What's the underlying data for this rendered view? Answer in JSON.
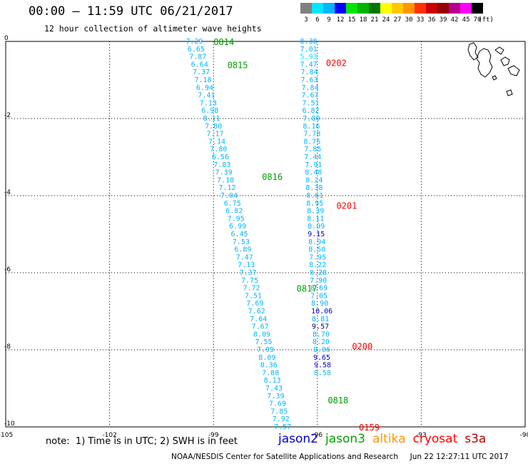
{
  "title": "00:00 – 11:59 UTC 06/21/2017",
  "subtitle": "12 hour collection of altimeter wave heights",
  "color_scale": {
    "unit": "(ft)",
    "values": [
      "3",
      "6",
      "9",
      "12",
      "15",
      "18",
      "21",
      "24",
      "27",
      "30",
      "33",
      "36",
      "39",
      "42",
      "45",
      "70"
    ],
    "colors": [
      "#808080",
      "#00e6ff",
      "#00b4ff",
      "#0000ff",
      "#00e600",
      "#00b400",
      "#007800",
      "#ffff00",
      "#ffc800",
      "#ff9600",
      "#ff3200",
      "#c80000",
      "#960000",
      "#b4008c",
      "#ff00ff",
      "#000000"
    ]
  },
  "axes": {
    "x_ticks": [
      "-105",
      "-102",
      "-99",
      "-96",
      "-93",
      "-90"
    ],
    "y_ticks": [
      "0",
      "-2",
      "-4",
      "-6",
      "-8",
      "-10"
    ]
  },
  "tracks": [
    {
      "satellite": "jason3",
      "color": "#00a000",
      "time_labels": [
        {
          "text": "0814",
          "lon": -99.0,
          "lat": 0.0
        },
        {
          "text": "0815",
          "lon": -98.6,
          "lat": -0.6
        },
        {
          "text": "0816",
          "lon": -97.6,
          "lat": -3.5
        },
        {
          "text": "0817",
          "lon": -96.6,
          "lat": -6.4
        },
        {
          "text": "0818",
          "lon": -95.7,
          "lat": -9.3
        }
      ]
    },
    {
      "satellite": "cryosat",
      "color": "#ff0000",
      "time_labels": [
        {
          "text": "0202",
          "lon": -95.75,
          "lat": -0.55
        },
        {
          "text": "0201",
          "lon": -95.45,
          "lat": -4.25
        },
        {
          "text": "0200",
          "lon": -95.0,
          "lat": -7.9
        },
        {
          "text": "0159",
          "lon": -94.8,
          "lat": -10.0
        }
      ]
    }
  ],
  "swh": [
    {
      "v": "7.29",
      "lon": -99.8,
      "lat": 0.0,
      "c": "#00b4ff"
    },
    {
      "v": "6.65",
      "lon": -99.75,
      "lat": -0.2,
      "c": "#00b4ff"
    },
    {
      "v": "7.87",
      "lon": -99.7,
      "lat": -0.4,
      "c": "#00b4ff"
    },
    {
      "v": "6.64",
      "lon": -99.65,
      "lat": -0.6,
      "c": "#00b4ff"
    },
    {
      "v": "7.37",
      "lon": -99.6,
      "lat": -0.8,
      "c": "#00b4ff"
    },
    {
      "v": "7.18",
      "lon": -99.55,
      "lat": -1.0,
      "c": "#00b4ff"
    },
    {
      "v": "6.94",
      "lon": -99.5,
      "lat": -1.2,
      "c": "#00b4ff"
    },
    {
      "v": "7.41",
      "lon": -99.45,
      "lat": -1.4,
      "c": "#00b4ff"
    },
    {
      "v": "7.13",
      "lon": -99.4,
      "lat": -1.6,
      "c": "#00b4ff"
    },
    {
      "v": "6.98",
      "lon": -99.35,
      "lat": -1.8,
      "c": "#00b4ff"
    },
    {
      "v": "8.11",
      "lon": -99.3,
      "lat": -2.0,
      "c": "#00b4ff"
    },
    {
      "v": "7.80",
      "lon": -99.25,
      "lat": -2.2,
      "c": "#00b4ff"
    },
    {
      "v": "7.17",
      "lon": -99.2,
      "lat": -2.4,
      "c": "#00b4ff"
    },
    {
      "v": "7.14",
      "lon": -99.15,
      "lat": -2.6,
      "c": "#00b4ff"
    },
    {
      "v": "7.80",
      "lon": -99.1,
      "lat": -2.8,
      "c": "#00b4ff"
    },
    {
      "v": "6.56",
      "lon": -99.05,
      "lat": -3.0,
      "c": "#00b4ff"
    },
    {
      "v": "7.83",
      "lon": -99.0,
      "lat": -3.2,
      "c": "#00b4ff"
    },
    {
      "v": "7.39",
      "lon": -98.95,
      "lat": -3.4,
      "c": "#00b4ff"
    },
    {
      "v": "7.18",
      "lon": -98.9,
      "lat": -3.6,
      "c": "#00b4ff"
    },
    {
      "v": "7.12",
      "lon": -98.85,
      "lat": -3.8,
      "c": "#00b4ff"
    },
    {
      "v": "7.04",
      "lon": -98.8,
      "lat": -4.0,
      "c": "#00b4ff"
    },
    {
      "v": "6.75",
      "lon": -98.7,
      "lat": -4.2,
      "c": "#00b4ff"
    },
    {
      "v": "6.82",
      "lon": -98.65,
      "lat": -4.4,
      "c": "#00b4ff"
    },
    {
      "v": "7.95",
      "lon": -98.6,
      "lat": -4.6,
      "c": "#00b4ff"
    },
    {
      "v": "6.99",
      "lon": -98.55,
      "lat": -4.8,
      "c": "#00b4ff"
    },
    {
      "v": "6.45",
      "lon": -98.5,
      "lat": -5.0,
      "c": "#00b4ff"
    },
    {
      "v": "7.53",
      "lon": -98.45,
      "lat": -5.2,
      "c": "#00b4ff"
    },
    {
      "v": "6.89",
      "lon": -98.4,
      "lat": -5.4,
      "c": "#00b4ff"
    },
    {
      "v": "7.47",
      "lon": -98.35,
      "lat": -5.6,
      "c": "#00b4ff"
    },
    {
      "v": "7.13",
      "lon": -98.3,
      "lat": -5.8,
      "c": "#00b4ff"
    },
    {
      "v": "7.37",
      "lon": -98.25,
      "lat": -6.0,
      "c": "#00b4ff"
    },
    {
      "v": "7.75",
      "lon": -98.2,
      "lat": -6.2,
      "c": "#00b4ff"
    },
    {
      "v": "7.72",
      "lon": -98.15,
      "lat": -6.4,
      "c": "#00b4ff"
    },
    {
      "v": "7.51",
      "lon": -98.1,
      "lat": -6.6,
      "c": "#00b4ff"
    },
    {
      "v": "7.69",
      "lon": -98.05,
      "lat": -6.8,
      "c": "#00b4ff"
    },
    {
      "v": "7.62",
      "lon": -98.0,
      "lat": -7.0,
      "c": "#00b4ff"
    },
    {
      "v": "7.64",
      "lon": -97.95,
      "lat": -7.2,
      "c": "#00b4ff"
    },
    {
      "v": "7.67",
      "lon": -97.9,
      "lat": -7.4,
      "c": "#00b4ff"
    },
    {
      "v": "8.09",
      "lon": -97.85,
      "lat": -7.6,
      "c": "#00b4ff"
    },
    {
      "v": "7.55",
      "lon": -97.8,
      "lat": -7.8,
      "c": "#00b4ff"
    },
    {
      "v": "7.99",
      "lon": -97.75,
      "lat": -8.0,
      "c": "#00b4ff"
    },
    {
      "v": "8.09",
      "lon": -97.7,
      "lat": -8.2,
      "c": "#00b4ff"
    },
    {
      "v": "8.36",
      "lon": -97.65,
      "lat": -8.4,
      "c": "#00b4ff"
    },
    {
      "v": "7.88",
      "lon": -97.6,
      "lat": -8.6,
      "c": "#00b4ff"
    },
    {
      "v": "8.13",
      "lon": -97.55,
      "lat": -8.8,
      "c": "#00b4ff"
    },
    {
      "v": "7.43",
      "lon": -97.5,
      "lat": -9.0,
      "c": "#00b4ff"
    },
    {
      "v": "7.39",
      "lon": -97.45,
      "lat": -9.2,
      "c": "#00b4ff"
    },
    {
      "v": "7.69",
      "lon": -97.4,
      "lat": -9.4,
      "c": "#00b4ff"
    },
    {
      "v": "7.85",
      "lon": -97.35,
      "lat": -9.6,
      "c": "#00b4ff"
    },
    {
      "v": "7.92",
      "lon": -97.3,
      "lat": -9.8,
      "c": "#00b4ff"
    },
    {
      "v": "7.57",
      "lon": -97.25,
      "lat": -10.0,
      "c": "#00b4ff"
    },
    {
      "v": "8.38",
      "lon": -96.5,
      "lat": 0.0,
      "c": "#00b4ff"
    },
    {
      "v": "7.01",
      "lon": -96.5,
      "lat": -0.2,
      "c": "#00b4ff"
    },
    {
      "v": "5.93",
      "lon": -96.5,
      "lat": -0.4,
      "c": "#00e6ff"
    },
    {
      "v": "7.47",
      "lon": -96.5,
      "lat": -0.6,
      "c": "#00b4ff"
    },
    {
      "v": "7.84",
      "lon": -96.48,
      "lat": -0.8,
      "c": "#00b4ff"
    },
    {
      "v": "7.63",
      "lon": -96.48,
      "lat": -1.0,
      "c": "#00b4ff"
    },
    {
      "v": "7.84",
      "lon": -96.46,
      "lat": -1.2,
      "c": "#00b4ff"
    },
    {
      "v": "7.67",
      "lon": -96.46,
      "lat": -1.4,
      "c": "#00b4ff"
    },
    {
      "v": "7.51",
      "lon": -96.44,
      "lat": -1.6,
      "c": "#00b4ff"
    },
    {
      "v": "6.82",
      "lon": -96.44,
      "lat": -1.8,
      "c": "#00b4ff"
    },
    {
      "v": "7.80",
      "lon": -96.42,
      "lat": -2.0,
      "c": "#00b4ff"
    },
    {
      "v": "8.16",
      "lon": -96.42,
      "lat": -2.2,
      "c": "#00b4ff"
    },
    {
      "v": "7.78",
      "lon": -96.4,
      "lat": -2.4,
      "c": "#00b4ff"
    },
    {
      "v": "8.75",
      "lon": -96.4,
      "lat": -2.6,
      "c": "#00b4ff"
    },
    {
      "v": "7.85",
      "lon": -96.38,
      "lat": -2.8,
      "c": "#00b4ff"
    },
    {
      "v": "7.44",
      "lon": -96.38,
      "lat": -3.0,
      "c": "#00b4ff"
    },
    {
      "v": "7.91",
      "lon": -96.36,
      "lat": -3.2,
      "c": "#00b4ff"
    },
    {
      "v": "8.48",
      "lon": -96.36,
      "lat": -3.4,
      "c": "#00b4ff"
    },
    {
      "v": "8.24",
      "lon": -96.34,
      "lat": -3.6,
      "c": "#00b4ff"
    },
    {
      "v": "8.38",
      "lon": -96.34,
      "lat": -3.8,
      "c": "#00b4ff"
    },
    {
      "v": "8.61",
      "lon": -96.32,
      "lat": -4.0,
      "c": "#00b4ff"
    },
    {
      "v": "8.95",
      "lon": -96.32,
      "lat": -4.2,
      "c": "#00b4ff"
    },
    {
      "v": "8.39",
      "lon": -96.3,
      "lat": -4.4,
      "c": "#00b4ff"
    },
    {
      "v": "8.11",
      "lon": -96.3,
      "lat": -4.6,
      "c": "#00b4ff"
    },
    {
      "v": "8.99",
      "lon": -96.28,
      "lat": -4.8,
      "c": "#00b4ff"
    },
    {
      "v": "9.15",
      "lon": -96.28,
      "lat": -5.0,
      "c": "#0000cc"
    },
    {
      "v": "8.94",
      "lon": -96.26,
      "lat": -5.2,
      "c": "#00b4ff"
    },
    {
      "v": "8.50",
      "lon": -96.26,
      "lat": -5.4,
      "c": "#00b4ff"
    },
    {
      "v": "7.95",
      "lon": -96.24,
      "lat": -5.6,
      "c": "#00b4ff"
    },
    {
      "v": "8.22",
      "lon": -96.24,
      "lat": -5.8,
      "c": "#00b4ff"
    },
    {
      "v": "8.28",
      "lon": -96.22,
      "lat": -6.0,
      "c": "#00b4ff"
    },
    {
      "v": "7.90",
      "lon": -96.22,
      "lat": -6.2,
      "c": "#00b4ff"
    },
    {
      "v": "8.69",
      "lon": -96.2,
      "lat": -6.4,
      "c": "#00b4ff"
    },
    {
      "v": "7.05",
      "lon": -96.2,
      "lat": -6.6,
      "c": "#00b4ff"
    },
    {
      "v": "8.90",
      "lon": -96.18,
      "lat": -6.8,
      "c": "#00b4ff"
    },
    {
      "v": "10.06",
      "lon": -96.18,
      "lat": -7.0,
      "c": "#0000cc"
    },
    {
      "v": "8.81",
      "lon": -96.16,
      "lat": -7.2,
      "c": "#00b4ff"
    },
    {
      "v": "9.57",
      "lon": -96.16,
      "lat": -7.4,
      "c": "#000060"
    },
    {
      "v": "8.70",
      "lon": -96.14,
      "lat": -7.6,
      "c": "#00b4ff"
    },
    {
      "v": "8.20",
      "lon": -96.14,
      "lat": -7.8,
      "c": "#00b4ff"
    },
    {
      "v": "8.06",
      "lon": -96.12,
      "lat": -8.0,
      "c": "#00b4ff"
    },
    {
      "v": "9.65",
      "lon": -96.12,
      "lat": -8.2,
      "c": "#0000cc"
    },
    {
      "v": "9.58",
      "lon": -96.1,
      "lat": -8.4,
      "c": "#0000cc"
    },
    {
      "v": "8.58",
      "lon": -96.1,
      "lat": -8.6,
      "c": "#00b4ff"
    }
  ],
  "note": "note:  1) Time is in UTC; 2) SWH is in feet",
  "legend": [
    {
      "label": "jason2",
      "color": "#0000cc"
    },
    {
      "label": "jason3",
      "color": "#00a000"
    },
    {
      "label": "altika",
      "color": "#ff9600"
    },
    {
      "label": "cryosat",
      "color": "#ff0000"
    },
    {
      "label": "s3a",
      "color": "#b40000"
    }
  ],
  "footer": "NOAA/NESDIS Center for Satellite Applications and Research     Jun 22 12:27:11 UTC 2017"
}
